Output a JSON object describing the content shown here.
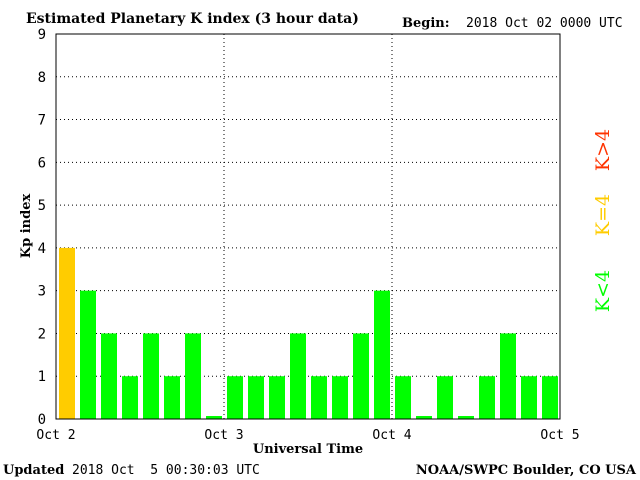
{
  "header": {
    "title": "Estimated Planetary K index (3 hour data)",
    "begin_label": "Begin:",
    "begin_value": "2018 Oct 02 0000 UTC"
  },
  "footer": {
    "updated_label": "Updated",
    "updated_value": "2018 Oct  5 00:30:03 UTC",
    "source": "NOAA/SWPC Boulder, CO USA"
  },
  "legend": {
    "above": "K>4",
    "equal": "K=4",
    "below": "K<4",
    "colors": {
      "above": "#ff3300",
      "equal": "#ffcc00",
      "below": "#00ff00"
    }
  },
  "chart_data": {
    "type": "bar",
    "title": "Estimated Planetary K index (3 hour data)",
    "xlabel": "Universal Time",
    "ylabel": "Kp index",
    "ylim": [
      0,
      9
    ],
    "yticks": [
      "0",
      "1",
      "2",
      "3",
      "4",
      "5",
      "6",
      "7",
      "8",
      "9"
    ],
    "xticks": [
      "Oct 2",
      "Oct 3",
      "Oct 4",
      "Oct 5"
    ],
    "grid": true,
    "interval_hours": 3,
    "values": [
      4,
      3,
      2,
      1,
      2,
      1,
      2,
      0.07,
      1,
      1,
      1,
      2,
      1,
      1,
      2,
      3,
      1,
      0.07,
      1,
      0.07,
      1,
      2,
      1,
      1
    ]
  }
}
